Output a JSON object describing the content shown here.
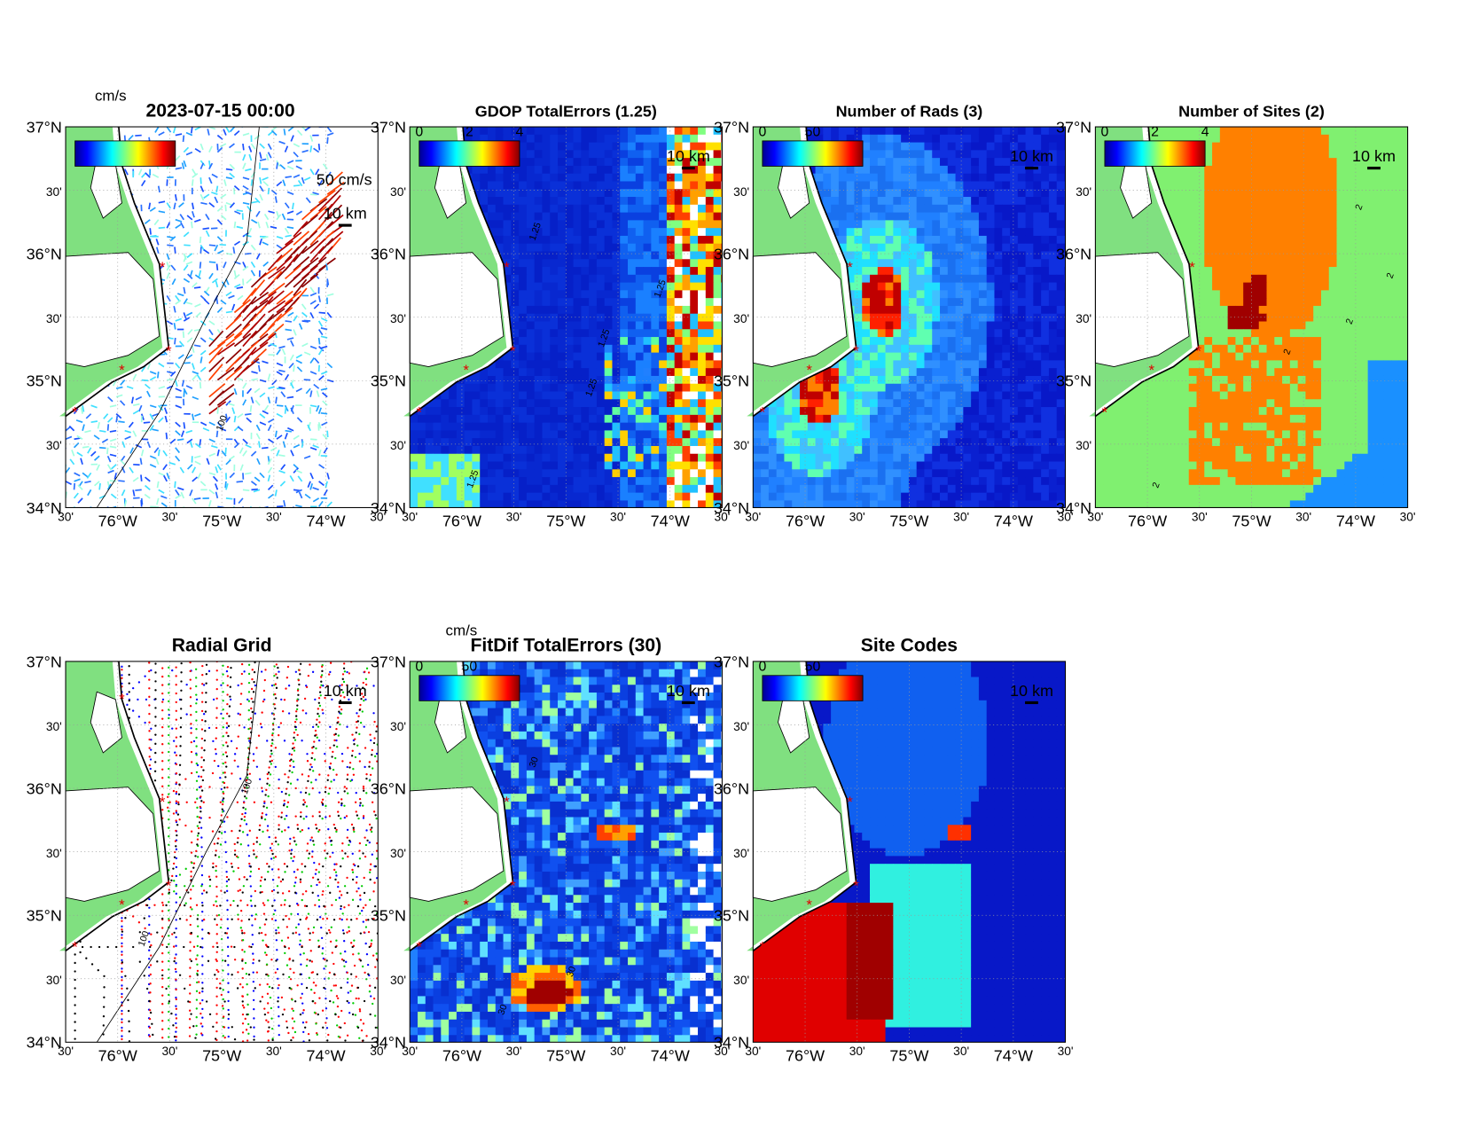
{
  "figure": {
    "panels": [
      {
        "title": "2023-07-15 00:00",
        "colorbar_label": "cm/s",
        "scale_labels": [
          "50 cm/s",
          "10 km"
        ],
        "contour_labels": [
          "100"
        ]
      },
      {
        "title": "GDOP TotalErrors (1.25)",
        "colorbar_ticks": [
          "0",
          "2",
          "4"
        ],
        "scale_labels": [
          "10 km"
        ],
        "contour_labels": [
          "1.25",
          "1.25",
          "1.25",
          "1.25",
          "1.25"
        ]
      },
      {
        "title": "Number of Rads (3)",
        "colorbar_ticks": [
          "0",
          "50"
        ],
        "scale_labels": [
          "10 km"
        ]
      },
      {
        "title": "Number of Sites (2)",
        "colorbar_ticks": [
          "0",
          "2",
          "4"
        ],
        "scale_labels": [
          "10 km"
        ],
        "contour_labels": [
          "2",
          "2",
          "2",
          "2",
          "2"
        ]
      },
      {
        "title": "Radial Grid",
        "scale_labels": [
          "10 km"
        ],
        "contour_labels": [
          "100",
          "100"
        ]
      },
      {
        "title": "FitDif TotalErrors (30)",
        "colorbar_label": "cm/s",
        "colorbar_ticks": [
          "0",
          "50"
        ],
        "scale_labels": [
          "10 km"
        ],
        "contour_labels": [
          "30",
          "30",
          "30"
        ]
      },
      {
        "title": "Site Codes",
        "colorbar_ticks": [
          "0",
          "50"
        ],
        "scale_labels": [
          "10 km"
        ]
      }
    ],
    "lat_labels": [
      "37°N",
      "30'",
      "36°N",
      "30'",
      "35°N",
      "30'",
      "34°N"
    ],
    "lon_labels": [
      "30'",
      "76°W",
      "30'",
      "75°W",
      "30'",
      "74°W",
      "30'"
    ]
  }
}
